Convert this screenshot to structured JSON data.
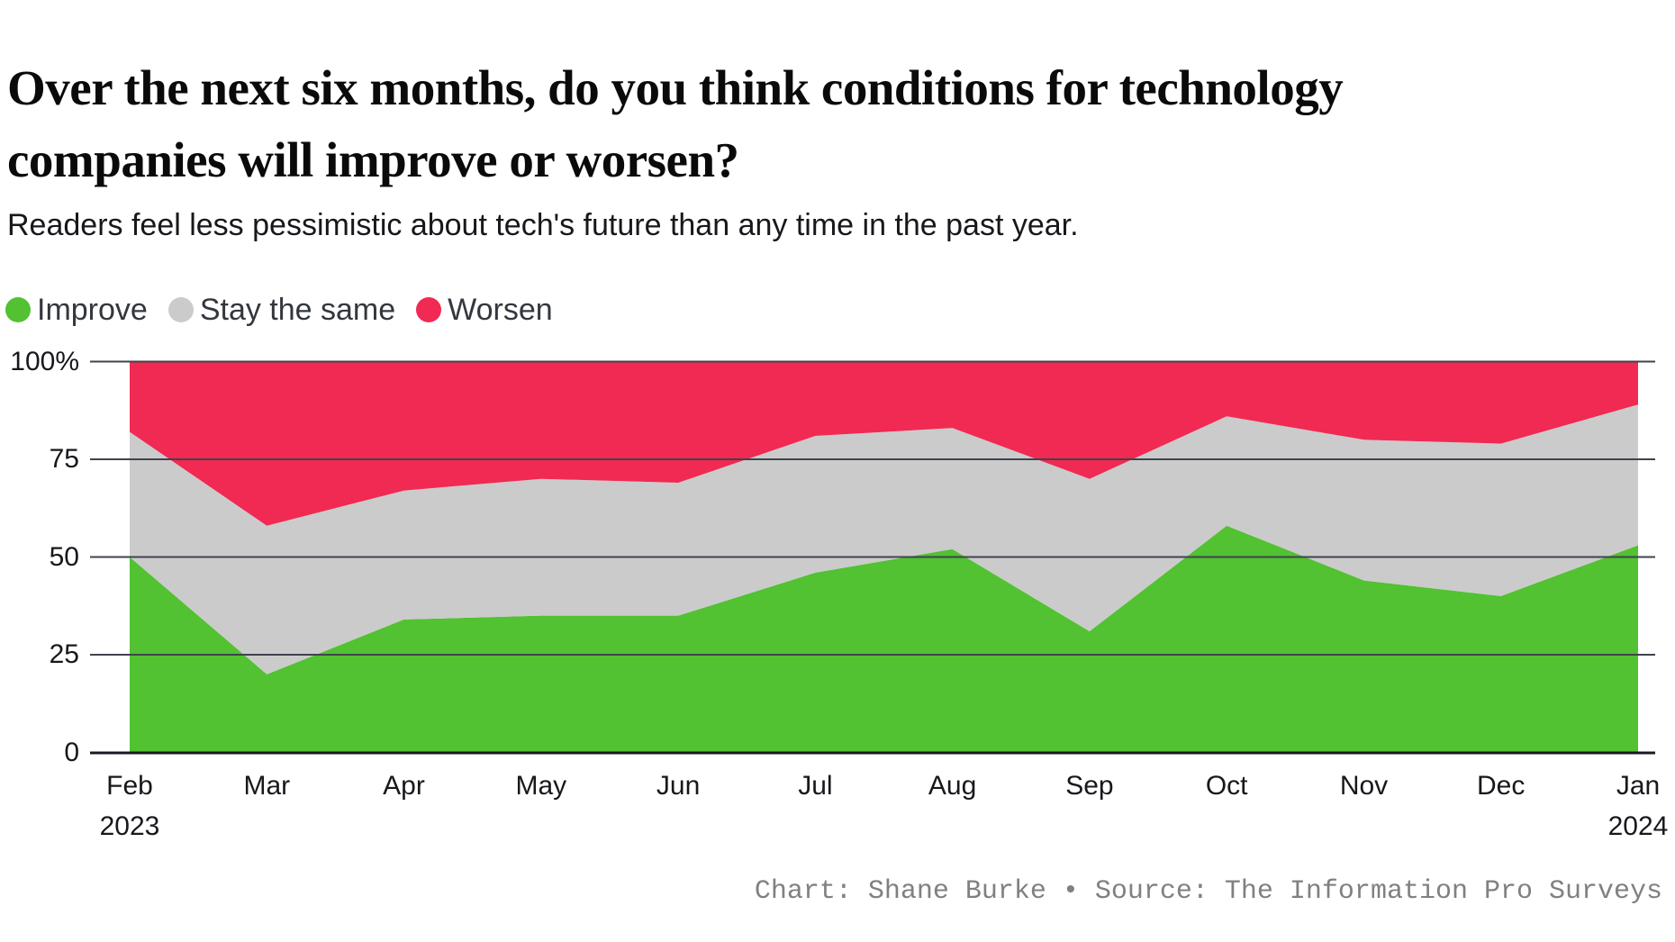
{
  "page": {
    "title": "Over the next six months, do you think conditions for technology companies will improve or worsen?",
    "subtitle": "Readers feel less pessimistic about tech's future than any time in the past year.",
    "credit": "Chart: Shane Burke • Source: The Information Pro Surveys"
  },
  "chart_data": {
    "type": "area",
    "stacked": true,
    "title": "Over the next six months, do you think conditions for technology companies will improve or worsen?",
    "subtitle": "Readers feel less pessimistic about tech's future than any time in the past year.",
    "categories": [
      "Feb 2023",
      "Mar",
      "Apr",
      "May",
      "Jun",
      "Jul",
      "Aug",
      "Sep",
      "Oct",
      "Nov",
      "Dec",
      "Jan 2024"
    ],
    "x_tick_lines": [
      [
        "Feb",
        "2023"
      ],
      [
        "Mar"
      ],
      [
        "Apr"
      ],
      [
        "May"
      ],
      [
        "Jun"
      ],
      [
        "Jul"
      ],
      [
        "Aug"
      ],
      [
        "Sep"
      ],
      [
        "Oct"
      ],
      [
        "Nov"
      ],
      [
        "Dec"
      ],
      [
        "Jan",
        "2024"
      ]
    ],
    "series": [
      {
        "name": "Improve",
        "color": "#52C132",
        "values": [
          50,
          20,
          34,
          35,
          35,
          46,
          52,
          31,
          58,
          44,
          40,
          53
        ]
      },
      {
        "name": "Stay the same",
        "color": "#CBCBCB",
        "values": [
          32,
          38,
          33,
          35,
          34,
          35,
          31,
          39,
          28,
          36,
          39,
          36
        ]
      },
      {
        "name": "Worsen",
        "color": "#F02A53",
        "values": [
          18,
          42,
          33,
          30,
          31,
          19,
          17,
          30,
          14,
          20,
          21,
          11
        ]
      }
    ],
    "unit": "%",
    "ylim": [
      0,
      100
    ],
    "y_ticks": [
      {
        "value": 0,
        "label": "0"
      },
      {
        "value": 25,
        "label": "25"
      },
      {
        "value": 50,
        "label": "50"
      },
      {
        "value": 75,
        "label": "75"
      },
      {
        "value": 100,
        "label": "100%"
      }
    ],
    "grid": true,
    "legend_position": "top-left"
  },
  "colors": {
    "grid": "#3F434E",
    "axis": "#181B22",
    "background": "#FFFFFF"
  }
}
